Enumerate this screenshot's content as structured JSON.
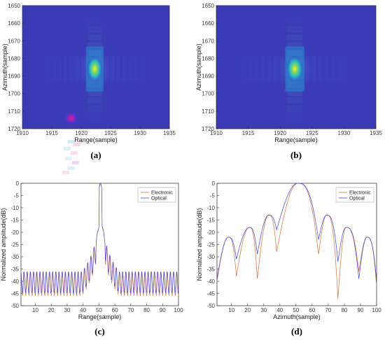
{
  "colors": {
    "background": "#ffffff",
    "heat_low": "#3b3bb6",
    "heat_mid": "#23b3c9",
    "heat_high": "#f2f213",
    "electronic": "#d2703c",
    "optical": "#4040d8"
  },
  "chart_data": [
    {
      "type": "heatmap",
      "panel_label": "(a)",
      "xlabel": "Range(sample)",
      "ylabel": "Azimuth(sample)",
      "xlim": [
        1910,
        1935
      ],
      "ylim": [
        1650,
        1720
      ],
      "xticks": [
        1910,
        1915,
        1920,
        1925,
        1930,
        1935
      ],
      "yticks": [
        1650,
        1660,
        1670,
        1680,
        1690,
        1700,
        1710,
        1720
      ],
      "peak": {
        "x": 1922.3,
        "y": 1686,
        "value": 1.0
      },
      "artifact": {
        "x": 1918.3,
        "y": 1714,
        "value": 0.6
      }
    },
    {
      "type": "heatmap",
      "panel_label": "(b)",
      "xlabel": "Range(sample)",
      "ylabel": "Azimuth(sample)",
      "xlim": [
        1910,
        1935
      ],
      "ylim": [
        1650,
        1720
      ],
      "xticks": [
        1910,
        1915,
        1920,
        1925,
        1930,
        1935
      ],
      "yticks": [
        1650,
        1660,
        1670,
        1680,
        1690,
        1700,
        1710,
        1720
      ],
      "peak": {
        "x": 1922.3,
        "y": 1686,
        "value": 1.0
      }
    },
    {
      "type": "line",
      "panel_label": "(c)",
      "xlabel": "Range(sample)",
      "ylabel": "Normalized amplitude(dB)",
      "xlim": [
        1,
        100
      ],
      "ylim": [
        -50,
        0
      ],
      "xticks": [
        10,
        20,
        30,
        40,
        50,
        60,
        70,
        80,
        90,
        100
      ],
      "yticks": [
        0,
        -5,
        -10,
        -15,
        -20,
        -25,
        -30,
        -35,
        -40,
        -45,
        -50
      ],
      "legend_position": "top-right",
      "series": [
        {
          "name": "Electronic",
          "envelope_peak_x": 51,
          "side_lobe_period": 2,
          "min_level": -49
        },
        {
          "name": "Optical",
          "envelope_peak_x": 51,
          "side_lobe_period": 2,
          "min_level": -48
        }
      ]
    },
    {
      "type": "line",
      "panel_label": "(d)",
      "xlabel": "Azimuth(sample)",
      "ylabel": "Normalized amplitude(dB)",
      "xlim": [
        1,
        100
      ],
      "ylim": [
        -50,
        0
      ],
      "xticks": [
        10,
        20,
        30,
        40,
        50,
        60,
        70,
        80,
        90,
        100
      ],
      "yticks": [
        0,
        -5,
        -10,
        -15,
        -20,
        -25,
        -30,
        -35,
        -40,
        -45,
        -50
      ],
      "legend_position": "top-right",
      "lobe_peaks": [
        {
          "x": 8,
          "y": -22
        },
        {
          "x": 21,
          "y": -18
        },
        {
          "x": 33,
          "y": -13
        },
        {
          "x": 51,
          "y": 0
        },
        {
          "x": 69,
          "y": -13
        },
        {
          "x": 81,
          "y": -18
        },
        {
          "x": 94,
          "y": -22
        }
      ],
      "nulls": [
        {
          "x": 1,
          "y_electronic": -40,
          "y_optical": -39
        },
        {
          "x": 13,
          "y_electronic": -38,
          "y_optical": -31
        },
        {
          "x": 26,
          "y_electronic": -39,
          "y_optical": -29
        },
        {
          "x": 38,
          "y_electronic": -28,
          "y_optical": -19
        },
        {
          "x": 64,
          "y_electronic": -29,
          "y_optical": -23
        },
        {
          "x": 76,
          "y_electronic": -47,
          "y_optical": -32
        },
        {
          "x": 89,
          "y_electronic": -36,
          "y_optical": -39
        },
        {
          "x": 100,
          "y_electronic": -42,
          "y_optical": -40
        }
      ],
      "series": [
        {
          "name": "Electronic"
        },
        {
          "name": "Optical"
        }
      ]
    }
  ]
}
